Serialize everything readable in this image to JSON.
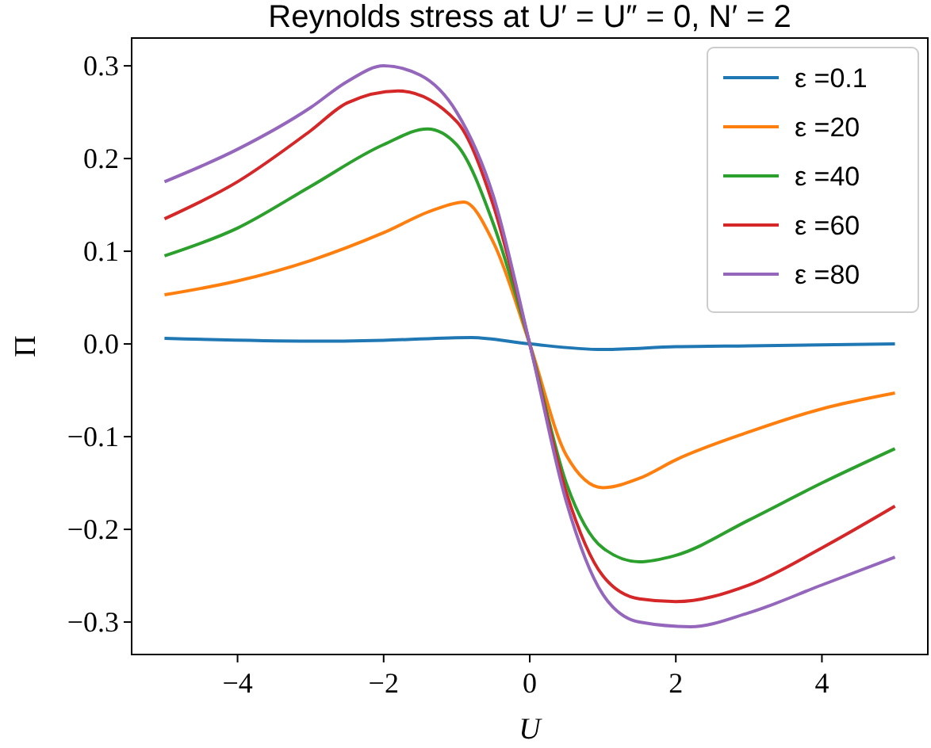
{
  "chart_data": {
    "type": "line",
    "title": "Reynolds stress at U′ = U″ = 0, N′ = 2",
    "xlabel": "U",
    "ylabel": "Π",
    "xlim": [
      -5.45,
      5.45
    ],
    "ylim": [
      -0.335,
      0.33
    ],
    "xticks": [
      {
        "value": -4,
        "label": "−4"
      },
      {
        "value": -2,
        "label": "−2"
      },
      0,
      2,
      4
    ],
    "yticks": [
      {
        "value": -0.3,
        "label": "−0.3"
      },
      {
        "value": -0.2,
        "label": "−0.2"
      },
      {
        "value": -0.1,
        "label": "−0.1"
      },
      {
        "value": 0,
        "label": "0.0"
      },
      0.1,
      0.2,
      0.3
    ],
    "grid": false,
    "legend": "top right",
    "marker": "none",
    "line_style": "solid",
    "series": [
      {
        "name": "ε =0.1",
        "color": "#1f77b4",
        "x": [
          -5,
          -3,
          -2,
          -0.8,
          0,
          1,
          2,
          3,
          5
        ],
        "values": [
          0.006,
          0.003,
          0.004,
          0.007,
          0,
          -0.006,
          -0.003,
          -0.002,
          0
        ]
      },
      {
        "name": "ε =20",
        "color": "#ff7f0e",
        "x": [
          -5,
          -4,
          -3,
          -2,
          -1.3,
          -0.9,
          -0.5,
          0,
          0.5,
          1,
          1.5,
          2,
          3,
          4,
          5
        ],
        "values": [
          0.053,
          0.068,
          0.09,
          0.12,
          0.145,
          0.153,
          0.11,
          0,
          -0.12,
          -0.155,
          -0.145,
          -0.125,
          -0.095,
          -0.07,
          -0.053
        ]
      },
      {
        "name": "ε =40",
        "color": "#2ca02c",
        "x": [
          -5,
          -4,
          -3,
          -2,
          -1.4,
          -1,
          -0.5,
          0,
          0.5,
          1,
          1.5,
          2,
          3,
          4,
          5
        ],
        "values": [
          0.095,
          0.125,
          0.17,
          0.215,
          0.232,
          0.215,
          0.13,
          0,
          -0.15,
          -0.22,
          -0.235,
          -0.228,
          -0.19,
          -0.15,
          -0.113
        ]
      },
      {
        "name": "ε =60",
        "color": "#d62728",
        "x": [
          -5,
          -4,
          -3,
          -2.5,
          -1.8,
          -1,
          -0.5,
          0,
          0.5,
          1,
          1.5,
          2,
          3,
          4,
          5
        ],
        "values": [
          0.135,
          0.175,
          0.23,
          0.26,
          0.273,
          0.24,
          0.15,
          0,
          -0.16,
          -0.25,
          -0.275,
          -0.278,
          -0.26,
          -0.22,
          -0.175
        ]
      },
      {
        "name": "ε =80",
        "color": "#9467bd",
        "x": [
          -5,
          -4,
          -3,
          -2.5,
          -2,
          -1.5,
          -1,
          -0.5,
          0,
          0.5,
          1,
          1.5,
          2.2,
          3,
          4,
          5
        ],
        "values": [
          0.175,
          0.21,
          0.255,
          0.283,
          0.3,
          0.29,
          0.25,
          0.16,
          0,
          -0.17,
          -0.27,
          -0.3,
          -0.305,
          -0.29,
          -0.26,
          -0.23
        ]
      }
    ]
  }
}
